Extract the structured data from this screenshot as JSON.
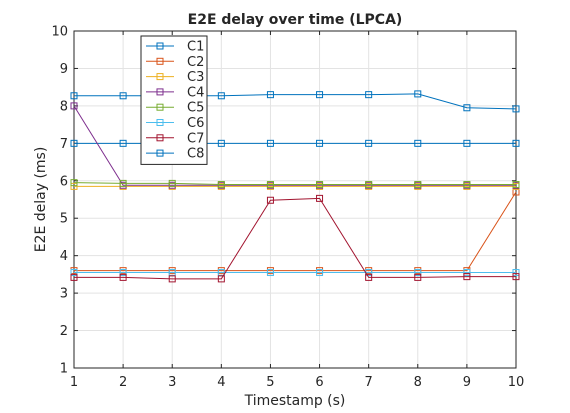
{
  "chart_data": {
    "type": "line",
    "title": "E2E delay over time (LPCA)",
    "xlabel": "Timestamp (s)",
    "ylabel": "E2E delay (ms)",
    "xlim": [
      1,
      10
    ],
    "ylim": [
      1,
      10
    ],
    "xticks": [
      1,
      2,
      3,
      4,
      5,
      6,
      7,
      8,
      9,
      10
    ],
    "yticks": [
      1,
      2,
      3,
      4,
      5,
      6,
      7,
      8,
      9,
      10
    ],
    "grid": true,
    "legend_position": "upper-left inside",
    "marker": "square",
    "x": [
      1,
      2,
      3,
      4,
      5,
      6,
      7,
      8,
      9,
      10
    ],
    "series": [
      {
        "name": "C1",
        "color": "#0072BD",
        "values": [
          7.0,
          7.0,
          7.0,
          7.0,
          7.0,
          7.0,
          7.0,
          7.0,
          7.0,
          7.0
        ]
      },
      {
        "name": "C2",
        "color": "#D95319",
        "values": [
          3.6,
          3.6,
          3.6,
          3.6,
          3.6,
          3.6,
          3.6,
          3.6,
          3.6,
          5.7
        ]
      },
      {
        "name": "C3",
        "color": "#EDB120",
        "values": [
          5.85,
          5.85,
          5.85,
          5.85,
          5.85,
          5.85,
          5.85,
          5.85,
          5.85,
          5.85
        ]
      },
      {
        "name": "C4",
        "color": "#7E2F8E",
        "values": [
          8.0,
          5.88,
          5.88,
          5.88,
          5.88,
          5.88,
          5.88,
          5.88,
          5.88,
          5.88
        ]
      },
      {
        "name": "C5",
        "color": "#77AC30",
        "values": [
          5.95,
          5.93,
          5.93,
          5.9,
          5.9,
          5.9,
          5.9,
          5.9,
          5.9,
          5.9
        ]
      },
      {
        "name": "C6",
        "color": "#4DBEEE",
        "values": [
          3.55,
          3.55,
          3.55,
          3.55,
          3.55,
          3.55,
          3.55,
          3.55,
          3.55,
          3.55
        ]
      },
      {
        "name": "C7",
        "color": "#A2142F",
        "values": [
          3.42,
          3.42,
          3.38,
          3.38,
          5.48,
          5.53,
          3.42,
          3.42,
          3.44,
          3.44
        ]
      },
      {
        "name": "C8",
        "color": "#0072BD",
        "values": [
          8.27,
          8.27,
          8.27,
          8.27,
          8.3,
          8.3,
          8.3,
          8.32,
          7.95,
          7.92
        ]
      }
    ]
  }
}
